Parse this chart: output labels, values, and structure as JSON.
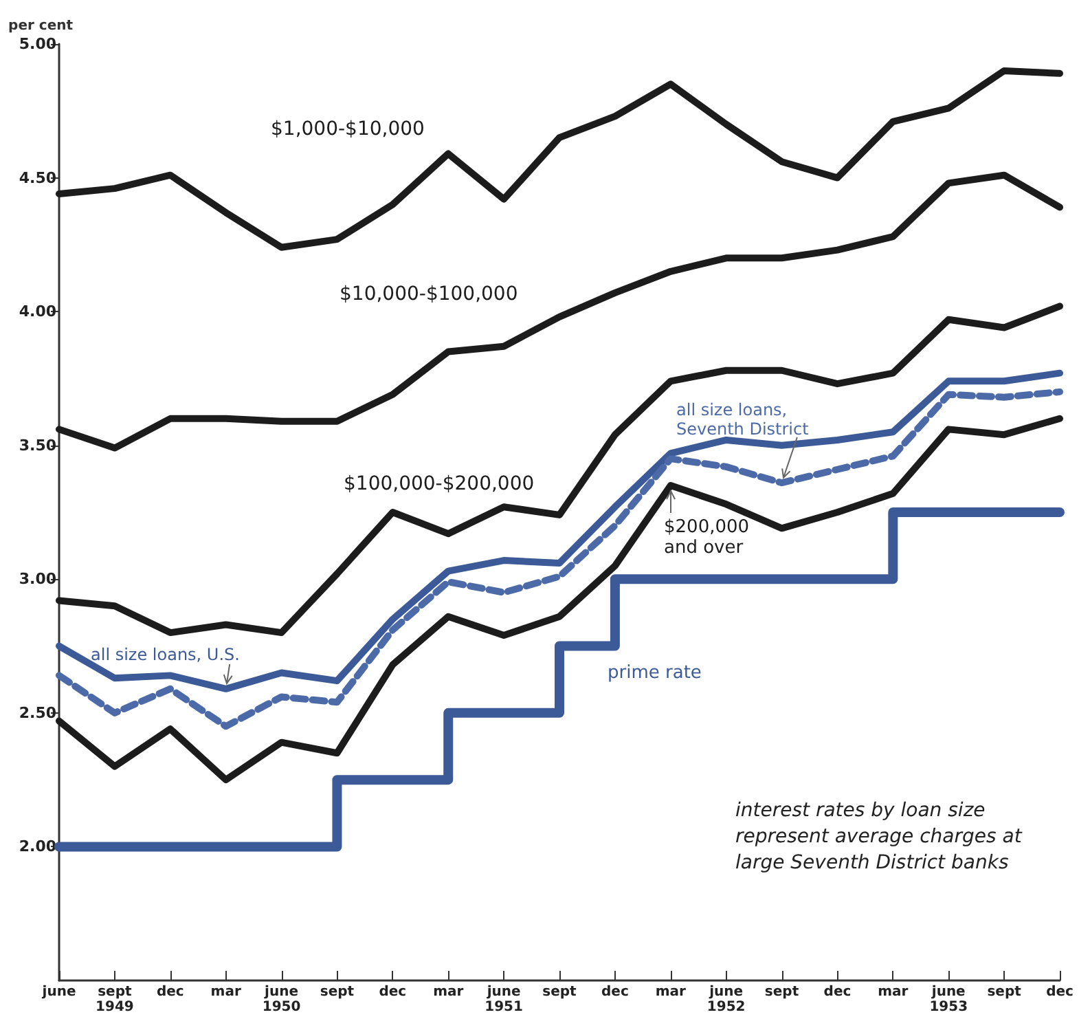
{
  "chart_data": {
    "type": "line",
    "ylabel": "per cent",
    "categories": [
      "june",
      "sept\n1949",
      "dec",
      "mar",
      "june\n1950",
      "sept",
      "dec",
      "mar",
      "june\n1951",
      "sept",
      "dec",
      "mar",
      "june\n1952",
      "sept",
      "dec",
      "mar",
      "june\n1953",
      "sept",
      "dec"
    ],
    "series": [
      {
        "name": "$1,000-$10,000",
        "color": "#1c1c1c",
        "values": [
          4.44,
          4.46,
          4.51,
          4.37,
          4.24,
          4.27,
          4.4,
          4.59,
          4.42,
          4.65,
          4.73,
          4.85,
          4.7,
          4.56,
          4.5,
          4.71,
          4.76,
          4.9,
          4.89
        ]
      },
      {
        "name": "$10,000-$100,000",
        "color": "#1c1c1c",
        "values": [
          3.56,
          3.49,
          3.6,
          3.6,
          3.59,
          3.59,
          3.69,
          3.85,
          3.87,
          3.98,
          4.07,
          4.15,
          4.2,
          4.2,
          4.23,
          4.28,
          4.48,
          4.51,
          4.39
        ]
      },
      {
        "name": "$100,000-$200,000",
        "color": "#1c1c1c",
        "values": [
          2.92,
          2.9,
          2.8,
          2.83,
          2.8,
          3.02,
          3.25,
          3.17,
          3.27,
          3.24,
          3.54,
          3.74,
          3.78,
          3.78,
          3.73,
          3.77,
          3.97,
          3.94,
          4.02
        ]
      },
      {
        "name": "all size loans, U.S.",
        "color": "#3d5a98",
        "line_style": "solid",
        "values": [
          2.75,
          2.63,
          2.64,
          2.59,
          2.65,
          2.62,
          2.85,
          3.03,
          3.07,
          3.06,
          3.27,
          3.47,
          3.52,
          3.5,
          3.52,
          3.55,
          3.74,
          3.74,
          3.77
        ]
      },
      {
        "name": "all size loans, Seventh District",
        "color": "#4c6aa8",
        "line_style": "dashed",
        "values": [
          2.64,
          2.5,
          2.59,
          2.45,
          2.56,
          2.54,
          2.81,
          2.99,
          2.95,
          3.01,
          3.2,
          3.45,
          3.42,
          3.36,
          3.41,
          3.46,
          3.69,
          3.68,
          3.7
        ]
      },
      {
        "name": "$200,000 and over",
        "color": "#1c1c1c",
        "values": [
          2.47,
          2.3,
          2.44,
          2.25,
          2.39,
          2.35,
          2.68,
          2.86,
          2.79,
          2.86,
          3.05,
          3.35,
          3.28,
          3.19,
          3.25,
          3.32,
          3.56,
          3.54,
          3.6
        ]
      },
      {
        "name": "prime rate",
        "type": "step",
        "color": "#3d5a98",
        "values": [
          2.0,
          2.0,
          2.0,
          2.0,
          2.0,
          2.25,
          2.25,
          2.5,
          2.5,
          2.75,
          3.0,
          3.0,
          3.0,
          3.0,
          3.0,
          3.25,
          3.25,
          3.25,
          3.25
        ]
      }
    ],
    "ylim": [
      1.5,
      5.0
    ],
    "yticks": [
      {
        "value": 2,
        "label": "2.00"
      },
      {
        "value": 2.5,
        "label": "2.50"
      },
      {
        "value": 3,
        "label": "3.00"
      },
      {
        "value": 3.5,
        "label": "3.50"
      },
      {
        "value": 4,
        "label": "4.00"
      },
      {
        "value": 4.5,
        "label": "4.50"
      },
      {
        "value": 5,
        "label": "5.00"
      }
    ],
    "annotations": [
      "interest rates by loan size represent average charges at large Seventh District banks"
    ],
    "grid": false,
    "legend": false,
    "marker": "none"
  }
}
